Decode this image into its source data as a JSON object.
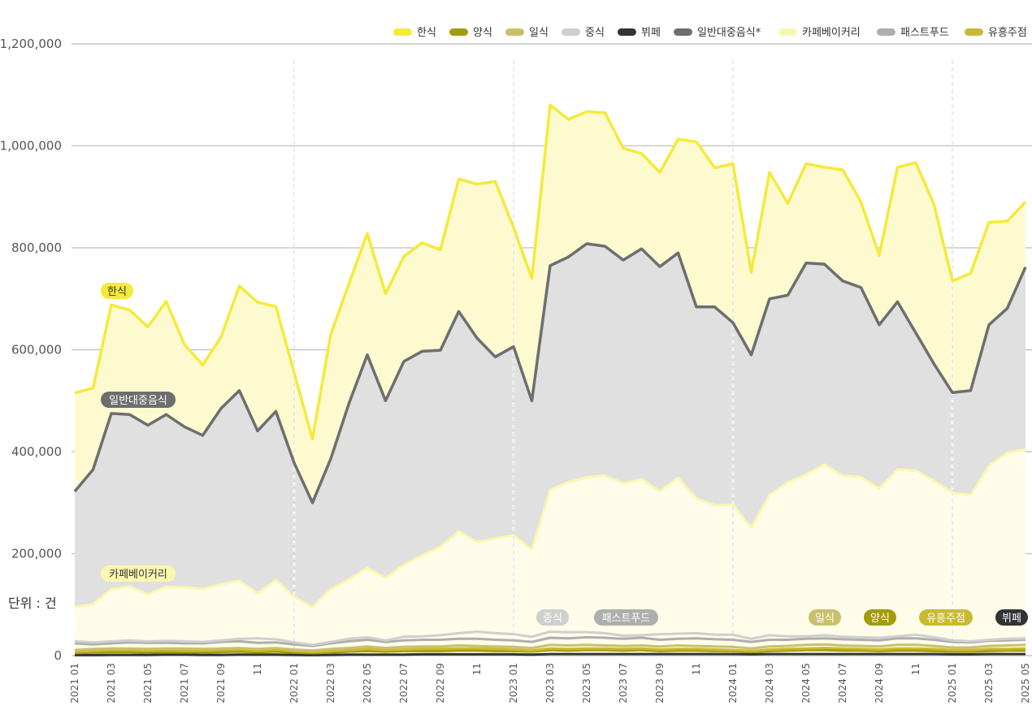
{
  "unit_label": "단위 : 건",
  "legend": [
    {
      "name": "한식",
      "color": "#f5ea3a",
      "icon": "pill-swatch"
    },
    {
      "name": "양식",
      "color": "#a39a0c",
      "icon": "pill-swatch"
    },
    {
      "name": "일식",
      "color": "#c9c06e",
      "icon": "pill-swatch"
    },
    {
      "name": "중식",
      "color": "#cfcfcf",
      "icon": "pill-swatch"
    },
    {
      "name": "뷔페",
      "color": "#333333",
      "icon": "pill-swatch"
    },
    {
      "name": "일반대중음식*",
      "color": "#6e6e6e",
      "icon": "pill-swatch"
    },
    {
      "name": "카페베이커리",
      "color": "#fbf7b0",
      "icon": "pill-swatch"
    },
    {
      "name": "패스트푸드",
      "color": "#aeaeae",
      "icon": "pill-swatch"
    },
    {
      "name": "유흥주점",
      "color": "#c8bb32",
      "icon": "pill-swatch"
    }
  ],
  "tags": [
    {
      "text": "한식",
      "bg": "#f5ea3a",
      "fg": "#333333"
    },
    {
      "text": "일반대중음식",
      "bg": "#6e6e6e",
      "fg": "#ffffff"
    },
    {
      "text": "카페베이커리",
      "bg": "#fbf7b0",
      "fg": "#333333"
    },
    {
      "text": "중식",
      "bg": "#cfcfcf",
      "fg": "#ffffff"
    },
    {
      "text": "패스트푸드",
      "bg": "#aeaeae",
      "fg": "#ffffff"
    },
    {
      "text": "일식",
      "bg": "#c9c06e",
      "fg": "#ffffff"
    },
    {
      "text": "양식",
      "bg": "#a39a0c",
      "fg": "#ffffff"
    },
    {
      "text": "유흥주점",
      "bg": "#c8bb32",
      "fg": "#ffffff"
    },
    {
      "text": "뷔페",
      "bg": "#333333",
      "fg": "#ffffff"
    }
  ],
  "chart_data": {
    "type": "area",
    "title": "",
    "xlabel": "",
    "ylabel": "",
    "unit": "건",
    "ylim": [
      0,
      1200000
    ],
    "yticks": [
      0,
      200000,
      400000,
      600000,
      800000,
      1000000,
      1200000
    ],
    "ytick_labels": [
      "0",
      "200,000",
      "400,000",
      "600,000",
      "800,000",
      "1,000,000",
      "1,200,000"
    ],
    "grid": true,
    "legend_position": "top-right",
    "x": [
      "2021 01",
      "2021 02",
      "2021 03",
      "2021 04",
      "2021 05",
      "2021 06",
      "2021 07",
      "2021 08",
      "2021 09",
      "2021 10",
      "2021 11",
      "2021 12",
      "2022 01",
      "2022 02",
      "2022 03",
      "2022 04",
      "2022 05",
      "2022 06",
      "2022 07",
      "2022 08",
      "2022 09",
      "2022 10",
      "2022 11",
      "2022 12",
      "2023 01",
      "2023 02",
      "2023 03",
      "2023 04",
      "2023 05",
      "2023 06",
      "2023 07",
      "2023 08",
      "2023 09",
      "2023 10",
      "2023 11",
      "2023 12",
      "2024 01",
      "2024 02",
      "2024 03",
      "2024 04",
      "2024 05",
      "2024 06",
      "2024 07",
      "2024 08",
      "2024 09",
      "2024 10",
      "2024 11",
      "2024 12",
      "2025 01",
      "2025 02",
      "2025 03",
      "2025 04",
      "2025 05"
    ],
    "x_tick_labels": [
      "2021 01",
      "2021 03",
      "2021 05",
      "2021 07",
      "2021 09",
      "11",
      "2022 01",
      "2022 03",
      "2022 05",
      "2022 07",
      "2022 09",
      "11",
      "2023 01",
      "2023 03",
      "2023 05",
      "2023 07",
      "2023 09",
      "11",
      "2024 01",
      "2024 03",
      "2024 05",
      "2024 07",
      "2024 09",
      "11",
      "2025 01",
      "2025 03",
      "2025 05"
    ],
    "year_markers": [
      "2022 01",
      "2023 01",
      "2024 01",
      "2025 01"
    ],
    "series": [
      {
        "name": "한식",
        "color": "#f5ea3a",
        "fill": "#fdfad0",
        "values": [
          515000,
          525000,
          688000,
          678000,
          645000,
          695000,
          610000,
          570000,
          625000,
          725000,
          693000,
          685000,
          555000,
          425000,
          630000,
          730000,
          828000,
          710000,
          783000,
          810000,
          796000,
          935000,
          925000,
          930000,
          840000,
          740000,
          1080000,
          1052000,
          1067000,
          1065000,
          995000,
          985000,
          948000,
          1013000,
          1008000,
          957000,
          965000,
          752000,
          948000,
          887000,
          965000,
          958000,
          953000,
          890000,
          785000,
          958000,
          967000,
          885000,
          735000,
          750000,
          850000,
          852000,
          890000
        ]
      },
      {
        "name": "일반대중음식*",
        "color": "#6e6e6e",
        "fill": "#e0e0e0",
        "values": [
          322000,
          365000,
          475000,
          473000,
          452000,
          473000,
          449000,
          432000,
          485000,
          520000,
          441000,
          479000,
          378000,
          300000,
          386000,
          495000,
          590000,
          500000,
          577000,
          597000,
          599000,
          675000,
          623000,
          586000,
          606000,
          500000,
          765000,
          782000,
          808000,
          803000,
          776000,
          798000,
          763000,
          790000,
          684000,
          684000,
          653000,
          590000,
          700000,
          707000,
          770000,
          768000,
          735000,
          722000,
          649000,
          694000,
          633000,
          572000,
          516000,
          520000,
          649000,
          681000,
          762000
        ]
      },
      {
        "name": "카페베이커리",
        "color": "#fbf7b0",
        "fill": "#fffde9",
        "values": [
          95000,
          101000,
          130000,
          136000,
          120000,
          135000,
          134000,
          131000,
          140000,
          147000,
          122000,
          148000,
          115000,
          95000,
          130000,
          150000,
          172000,
          152000,
          178000,
          197000,
          213000,
          244000,
          223000,
          230000,
          236000,
          208000,
          325000,
          340000,
          350000,
          353000,
          338000,
          346000,
          322000,
          349000,
          308000,
          295000,
          296000,
          251000,
          315000,
          340000,
          355000,
          375000,
          353000,
          350000,
          328000,
          365000,
          363000,
          343000,
          320000,
          315000,
          372000,
          398000,
          405000
        ]
      },
      {
        "name": "중식",
        "color": "#cfcfcf",
        "values": [
          28000,
          26000,
          28000,
          30000,
          28000,
          29000,
          28000,
          27000,
          30000,
          33000,
          34000,
          32000,
          26000,
          21000,
          27000,
          33000,
          36000,
          30000,
          37000,
          38000,
          40000,
          44000,
          47000,
          44000,
          42000,
          37000,
          47000,
          46000,
          46000,
          44000,
          39000,
          40000,
          42000,
          43000,
          44000,
          41000,
          41000,
          33000,
          40000,
          38000,
          38000,
          40000,
          37000,
          36000,
          35000,
          38000,
          41000,
          36000,
          30000,
          28000,
          31000,
          33000,
          34000
        ]
      },
      {
        "name": "패스트푸드",
        "color": "#aeaeae",
        "values": [
          24000,
          22000,
          24000,
          26000,
          25000,
          25000,
          24000,
          24000,
          27000,
          28000,
          25000,
          26000,
          22000,
          19000,
          24000,
          28000,
          31000,
          27000,
          30000,
          31000,
          31000,
          33000,
          33000,
          31000,
          30000,
          27000,
          35000,
          34000,
          36000,
          35000,
          33000,
          35000,
          31000,
          33000,
          34000,
          32000,
          31000,
          27000,
          31000,
          31000,
          33000,
          34000,
          32000,
          31000,
          30000,
          34000,
          34000,
          31000,
          27000,
          26000,
          29000,
          30000,
          31000
        ]
      },
      {
        "name": "일식",
        "color": "#c9c06e",
        "values": [
          11000,
          13000,
          14000,
          14000,
          13000,
          14000,
          14000,
          13000,
          14000,
          15000,
          13000,
          15000,
          12000,
          10000,
          13000,
          15000,
          18000,
          15000,
          17000,
          18000,
          18000,
          20000,
          19000,
          18000,
          17000,
          15000,
          21000,
          20000,
          21000,
          20000,
          19000,
          20000,
          18000,
          20000,
          19000,
          18000,
          17000,
          14000,
          18000,
          19000,
          21000,
          22000,
          20000,
          19000,
          18000,
          21000,
          21000,
          19000,
          16000,
          16000,
          19000,
          20000,
          21000
        ]
      },
      {
        "name": "유흥주점",
        "color": "#c8bb32",
        "values": [
          8000,
          9000,
          11000,
          11000,
          10000,
          11000,
          10000,
          10000,
          11000,
          12000,
          10000,
          12000,
          9000,
          7000,
          9000,
          11000,
          13000,
          11000,
          12000,
          13000,
          13000,
          14000,
          14000,
          13000,
          12000,
          10000,
          14000,
          13000,
          14000,
          14000,
          13000,
          14000,
          12000,
          13000,
          13000,
          12000,
          11000,
          9000,
          12000,
          13000,
          14000,
          15000,
          14000,
          13000,
          12000,
          14000,
          14000,
          13000,
          11000,
          11000,
          13000,
          13000,
          14000
        ]
      },
      {
        "name": "양식",
        "color": "#a39a0c",
        "values": [
          5000,
          6000,
          7000,
          7000,
          6000,
          7000,
          7000,
          6000,
          7000,
          8000,
          7000,
          8000,
          6000,
          5000,
          6000,
          8000,
          9000,
          8000,
          9000,
          9000,
          9000,
          10000,
          10000,
          9000,
          9000,
          8000,
          11000,
          10000,
          11000,
          11000,
          10000,
          11000,
          9000,
          10000,
          10000,
          9000,
          9000,
          7000,
          9000,
          10000,
          11000,
          11000,
          10000,
          10000,
          9000,
          10000,
          10000,
          9000,
          8000,
          8000,
          9000,
          10000,
          10000
        ]
      },
      {
        "name": "뷔페",
        "color": "#333333",
        "values": [
          1000,
          1000,
          1500,
          1500,
          1500,
          2000,
          2000,
          1500,
          1500,
          2000,
          2000,
          2000,
          1500,
          1000,
          1500,
          2000,
          2000,
          2000,
          2000,
          2500,
          2500,
          2500,
          2500,
          2500,
          2500,
          2000,
          3000,
          3000,
          3000,
          3000,
          3000,
          3000,
          3000,
          3000,
          3000,
          3000,
          3000,
          2500,
          3000,
          3000,
          3000,
          3000,
          3000,
          3000,
          3000,
          3000,
          3000,
          3000,
          2500,
          2500,
          3000,
          3000,
          3000
        ]
      }
    ]
  }
}
